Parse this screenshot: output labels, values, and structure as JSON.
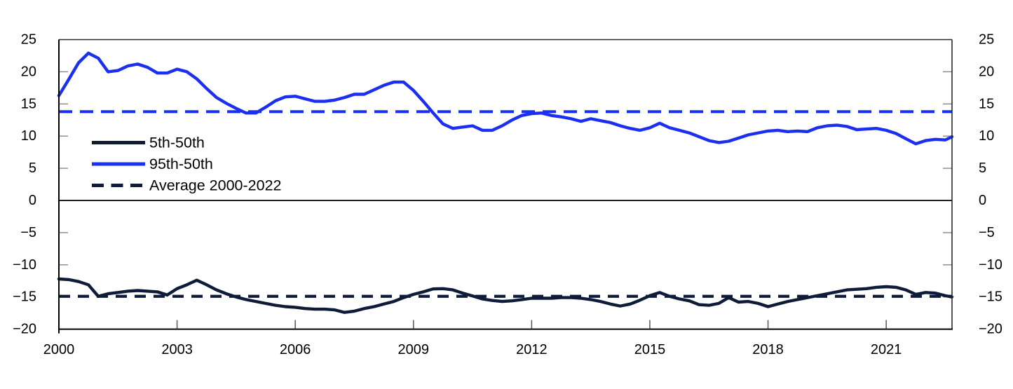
{
  "chart_data": {
    "type": "line",
    "title": "",
    "xlabel": "",
    "ylabel": "",
    "xlim": [
      2000,
      2022.67
    ],
    "ylim": [
      -20,
      25
    ],
    "x_tick_years": [
      2000,
      2003,
      2006,
      2009,
      2012,
      2015,
      2018,
      2021
    ],
    "y_tick_values": [
      25,
      20,
      15,
      10,
      5,
      0,
      -5,
      -10,
      -15,
      -20
    ],
    "y_axis_sides": [
      "left",
      "right"
    ],
    "grid": false,
    "zero_line": true,
    "x_start": 2000,
    "x_step": 0.25,
    "series": [
      {
        "name": "5th-50th",
        "color": "#0e1c3a",
        "style": "solid",
        "values": [
          -12.2,
          -12.3,
          -12.6,
          -13.1,
          -14.9,
          -14.5,
          -14.3,
          -14.1,
          -14.0,
          -14.1,
          -14.2,
          -14.7,
          -13.7,
          -13.1,
          -12.4,
          -13.1,
          -13.9,
          -14.5,
          -15.0,
          -15.4,
          -15.7,
          -16.0,
          -16.3,
          -16.5,
          -16.6,
          -16.8,
          -16.9,
          -16.9,
          -17.0,
          -17.4,
          -17.2,
          -16.8,
          -16.5,
          -16.1,
          -15.7,
          -15.1,
          -14.6,
          -14.2,
          -13.75,
          -13.7,
          -13.9,
          -14.4,
          -14.85,
          -15.3,
          -15.55,
          -15.7,
          -15.6,
          -15.4,
          -15.2,
          -15.2,
          -15.2,
          -15.1,
          -15.1,
          -15.2,
          -15.4,
          -15.7,
          -16.1,
          -16.4,
          -16.1,
          -15.5,
          -14.8,
          -14.3,
          -14.9,
          -15.3,
          -15.6,
          -16.2,
          -16.3,
          -16.0,
          -15.1,
          -15.8,
          -15.7,
          -16.0,
          -16.5,
          -16.1,
          -15.7,
          -15.4,
          -15.1,
          -14.8,
          -14.5,
          -14.2,
          -13.9,
          -13.8,
          -13.7,
          -13.5,
          -13.4,
          -13.5,
          -13.9,
          -14.6,
          -14.3,
          -14.4,
          -14.8,
          -15.0
        ]
      },
      {
        "name": "95th-50th",
        "color": "#1b2ff0",
        "style": "solid",
        "values": [
          16.3,
          18.8,
          21.4,
          22.9,
          22.1,
          20.0,
          20.2,
          20.9,
          21.2,
          20.7,
          19.8,
          19.8,
          20.4,
          20.0,
          18.9,
          17.4,
          16.0,
          15.1,
          14.3,
          13.6,
          13.6,
          14.5,
          15.5,
          16.1,
          16.2,
          15.8,
          15.4,
          15.4,
          15.6,
          16.0,
          16.5,
          16.5,
          17.2,
          17.9,
          18.4,
          18.4,
          17.1,
          15.4,
          13.6,
          11.9,
          11.2,
          11.4,
          11.6,
          10.9,
          10.9,
          11.6,
          12.5,
          13.2,
          13.5,
          13.6,
          13.2,
          13.0,
          12.7,
          12.3,
          12.7,
          12.4,
          12.1,
          11.6,
          11.2,
          10.9,
          11.3,
          12.0,
          11.3,
          10.9,
          10.5,
          9.9,
          9.3,
          9.0,
          9.2,
          9.7,
          10.2,
          10.5,
          10.8,
          10.9,
          10.7,
          10.8,
          10.7,
          11.3,
          11.6,
          11.7,
          11.5,
          11.0,
          11.1,
          11.2,
          10.9,
          10.4,
          9.6,
          8.8,
          9.3,
          9.5,
          9.4,
          9.9
        ]
      }
    ],
    "average_lines": [
      {
        "label": "Average 2000-2022",
        "applies_to": "95th-50th",
        "value": 13.8,
        "color": "#1b2ff0",
        "style": "dashed"
      },
      {
        "label": "Average 2000-2022",
        "applies_to": "5th-50th",
        "value": -14.9,
        "color": "#0e1c3a",
        "style": "dashed"
      }
    ],
    "legend": {
      "position": "upper-left-inside",
      "entries": [
        {
          "label": "5th-50th",
          "swatch": "solid",
          "color": "#0e1c3a"
        },
        {
          "label": "95th-50th",
          "swatch": "solid",
          "color": "#1b2ff0"
        },
        {
          "label": "Average 2000-2022",
          "swatch": "dashed",
          "color": "#0e1c3a"
        }
      ]
    }
  },
  "colors": {
    "background": "#ffffff",
    "axis": "#000000",
    "border": "#2a2a2a",
    "y_tick": "#888888",
    "x_tick": "#555555",
    "label": "#000000"
  }
}
